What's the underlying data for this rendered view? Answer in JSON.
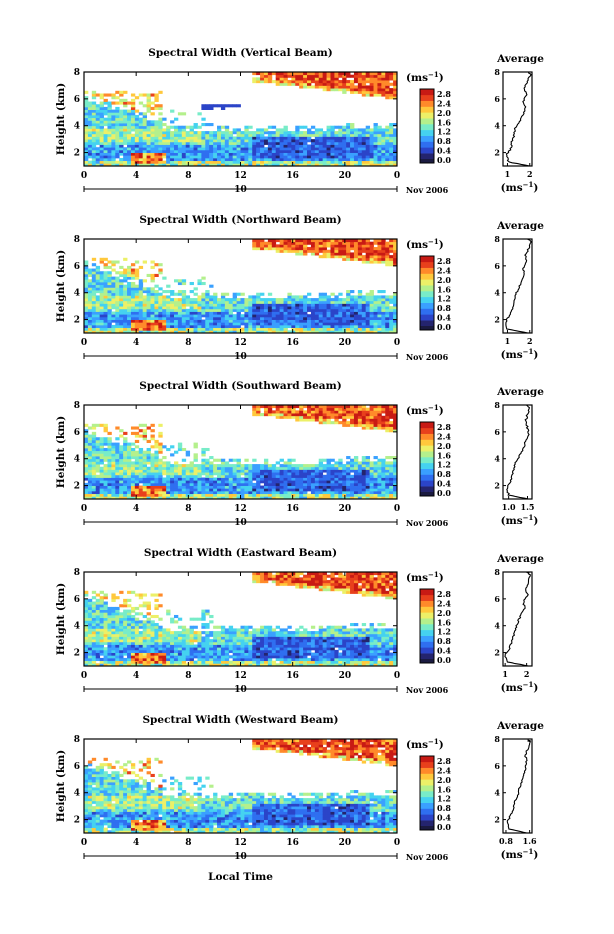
{
  "figure": {
    "xaxis_label": "Local Time",
    "date_label": "Nov 2006",
    "day_label": "10",
    "x_ticks": [
      "0",
      "4",
      "8",
      "12",
      "16",
      "20",
      "0"
    ],
    "y_label": "Height (km)",
    "y_ticks": [
      "2",
      "4",
      "6",
      "8"
    ],
    "cb_unit": "(ms",
    "cb_unit_exp": "−1",
    "cb_unit_close": ")",
    "cb_ticks": [
      "2.8",
      "2.4",
      "2.0",
      "1.6",
      "1.2",
      "0.8",
      "0.4",
      "0.0"
    ],
    "avg_title": "Average",
    "avg_unit": "(ms",
    "avg_unit_exp": "−1",
    "avg_unit_close": ")",
    "colors": {
      "colormap": [
        "#24246e",
        "#2b44c8",
        "#2f6ff0",
        "#3aa0ff",
        "#45d2f0",
        "#78ecc8",
        "#b4f08c",
        "#ecf068",
        "#ffc83c",
        "#ff8a2a",
        "#e8401c",
        "#c81a14"
      ],
      "colorbar_bottom_band": "#1a1a40"
    }
  },
  "chart_data": [
    {
      "type": "heatmap",
      "title": "Spectral Width (Vertical Beam)",
      "x_range": [
        0,
        24
      ],
      "y_range": [
        1,
        8
      ],
      "value_range": [
        0.0,
        2.8
      ],
      "average_profile": {
        "xticks": [
          "1",
          "2"
        ],
        "xrange": [
          0.8,
          2.1
        ],
        "heights": [
          1.0,
          1.3,
          1.8,
          2.3,
          2.8,
          3.3,
          3.8,
          4.3,
          4.8,
          5.3,
          5.8,
          6.3,
          6.8,
          7.3,
          7.8,
          8.0
        ],
        "values": [
          2.0,
          1.05,
          0.95,
          1.15,
          1.2,
          1.3,
          1.35,
          1.55,
          1.7,
          1.8,
          1.7,
          1.85,
          1.75,
          1.9,
          2.05,
          1.95
        ]
      }
    },
    {
      "type": "heatmap",
      "title": "Spectral Width (Northward Beam)",
      "x_range": [
        0,
        24
      ],
      "y_range": [
        1,
        8
      ],
      "value_range": [
        0.0,
        2.8
      ],
      "average_profile": {
        "xticks": [
          "1",
          "2"
        ],
        "xrange": [
          0.8,
          2.1
        ],
        "heights": [
          1.0,
          1.3,
          1.8,
          2.3,
          2.8,
          3.3,
          3.8,
          4.3,
          4.8,
          5.3,
          5.8,
          6.3,
          6.8,
          7.3,
          7.8,
          8.0
        ],
        "values": [
          1.9,
          1.0,
          0.9,
          1.1,
          1.2,
          1.3,
          1.35,
          1.5,
          1.6,
          1.75,
          1.7,
          1.85,
          1.8,
          1.95,
          2.05,
          1.95
        ]
      }
    },
    {
      "type": "heatmap",
      "title": "Spectral Width (Southward Beam)",
      "x_range": [
        0,
        24
      ],
      "y_range": [
        1,
        8
      ],
      "value_range": [
        0.0,
        2.8
      ],
      "average_profile": {
        "xticks": [
          "1.0",
          "1.5"
        ],
        "xrange": [
          0.85,
          1.62
        ],
        "heights": [
          1.0,
          1.3,
          1.8,
          2.3,
          2.8,
          3.3,
          3.8,
          4.3,
          4.8,
          5.3,
          5.8,
          6.3,
          6.8,
          7.3,
          7.8,
          8.0
        ],
        "values": [
          1.5,
          1.0,
          0.95,
          1.05,
          1.1,
          1.15,
          1.2,
          1.3,
          1.4,
          1.45,
          1.55,
          1.5,
          1.45,
          1.5,
          1.55,
          1.5
        ]
      }
    },
    {
      "type": "heatmap",
      "title": "Spectral Width (Eastward Beam)",
      "x_range": [
        0,
        24
      ],
      "y_range": [
        1,
        8
      ],
      "value_range": [
        0.0,
        2.8
      ],
      "average_profile": {
        "xticks": [
          "1",
          "2"
        ],
        "xrange": [
          0.9,
          2.25
        ],
        "heights": [
          1.0,
          1.3,
          1.8,
          2.3,
          2.8,
          3.3,
          3.8,
          4.3,
          4.8,
          5.3,
          5.8,
          6.3,
          6.8,
          7.3,
          7.8,
          8.0
        ],
        "values": [
          2.1,
          1.1,
          1.0,
          1.2,
          1.3,
          1.4,
          1.5,
          1.6,
          1.75,
          1.9,
          1.85,
          2.05,
          1.95,
          2.1,
          2.15,
          2.0
        ]
      }
    },
    {
      "type": "heatmap",
      "title": "Spectral Width (Westward Beam)",
      "x_range": [
        0,
        24
      ],
      "y_range": [
        1,
        8
      ],
      "value_range": [
        0.0,
        2.8
      ],
      "average_profile": {
        "xticks": [
          "0.8",
          "1.6"
        ],
        "xrange": [
          0.7,
          1.68
        ],
        "heights": [
          1.0,
          1.3,
          1.8,
          2.3,
          2.8,
          3.3,
          3.8,
          4.3,
          4.8,
          5.3,
          5.8,
          6.3,
          6.8,
          7.3,
          7.8,
          8.0
        ],
        "values": [
          1.5,
          0.9,
          0.85,
          0.95,
          1.05,
          1.1,
          1.2,
          1.25,
          1.35,
          1.4,
          1.45,
          1.5,
          1.45,
          1.55,
          1.6,
          1.55
        ]
      }
    }
  ]
}
